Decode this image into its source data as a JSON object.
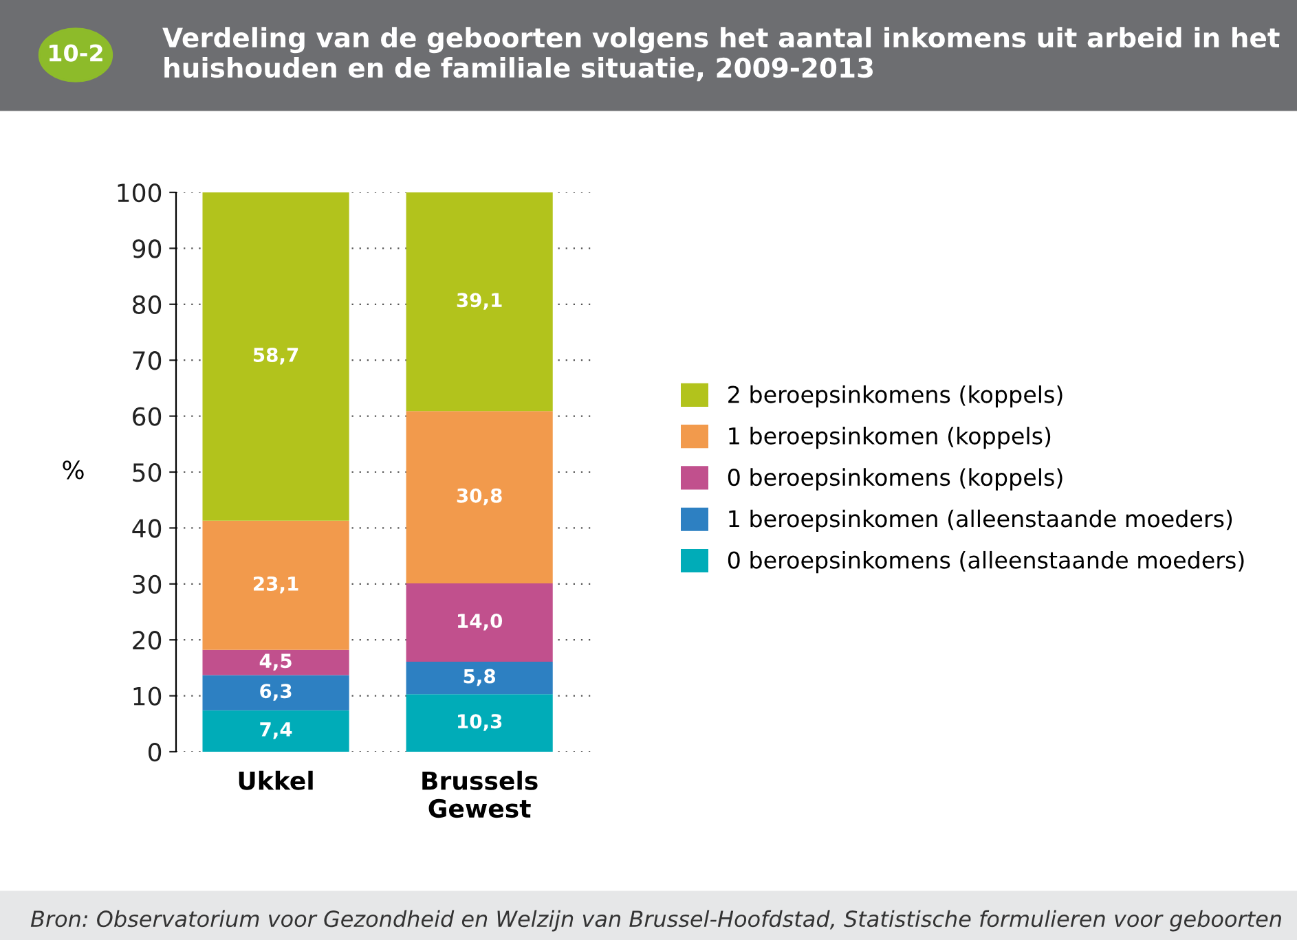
{
  "chart_data": {
    "type": "bar",
    "stacked": true,
    "title": "Verdeling van de geboorten volgens het aantal inkomens uit arbeid in het huishouden en de familiale situatie, 2009-2013",
    "ylabel": "%",
    "categories": [
      "Ukkel",
      "Brussels\nGewest"
    ],
    "series": [
      {
        "name": "0 beroepsinkomens (alleenstaande moeders)",
        "color": "#00acb8",
        "values": [
          7.4,
          10.3
        ],
        "value_labels": [
          "7,4",
          "10,3"
        ]
      },
      {
        "name": "1 beroepsinkomen (alleenstaande moeders)",
        "color": "#2d80c2",
        "values": [
          6.3,
          5.8
        ],
        "value_labels": [
          "6,3",
          "5,8"
        ]
      },
      {
        "name": "0 beroepsinkomens (koppels)",
        "color": "#c1508d",
        "values": [
          4.5,
          14.0
        ],
        "value_labels": [
          "4,5",
          "14,0"
        ]
      },
      {
        "name": "1 beroepsinkomen (koppels)",
        "color": "#f29a4c",
        "values": [
          23.1,
          30.8
        ],
        "value_labels": [
          "23,1",
          "30,8"
        ]
      },
      {
        "name": "2 beroepsinkomens (koppels)",
        "color": "#b2c31c",
        "values": [
          58.7,
          39.1
        ],
        "value_labels": [
          "58,7",
          "39,1"
        ]
      }
    ],
    "ylim": [
      0,
      100
    ],
    "yticks": [
      0,
      10,
      20,
      30,
      40,
      50,
      60,
      70,
      80,
      90,
      100
    ],
    "grid": "y",
    "legend": "right",
    "annotations": [
      "10-2",
      "Bron: Observatorium voor Gezondheid en Welzijn van Brussel-Hoofdstad, Statistische formulieren voor geboorten"
    ]
  }
}
